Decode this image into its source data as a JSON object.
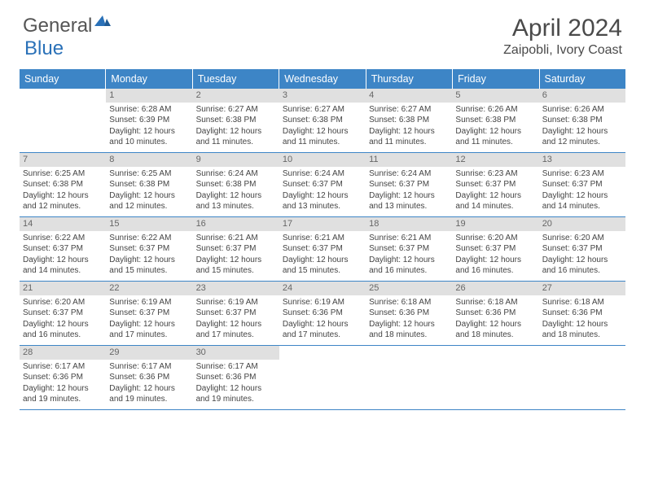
{
  "logo": {
    "general": "General",
    "blue": "Blue"
  },
  "title": "April 2024",
  "location": "Zaipobli, Ivory Coast",
  "colors": {
    "header_bar": "#3d85c6",
    "daynum_bg": "#e0e0e0",
    "text": "#444444",
    "logo_blue": "#2a71b8",
    "logo_gray": "#555555",
    "rule": "#3d85c6"
  },
  "days_of_week": [
    "Sunday",
    "Monday",
    "Tuesday",
    "Wednesday",
    "Thursday",
    "Friday",
    "Saturday"
  ],
  "weeks": [
    [
      {
        "n": "",
        "sr": "",
        "ss": "",
        "dl": ""
      },
      {
        "n": "1",
        "sr": "6:28 AM",
        "ss": "6:39 PM",
        "dl": "12 hours and 10 minutes."
      },
      {
        "n": "2",
        "sr": "6:27 AM",
        "ss": "6:38 PM",
        "dl": "12 hours and 11 minutes."
      },
      {
        "n": "3",
        "sr": "6:27 AM",
        "ss": "6:38 PM",
        "dl": "12 hours and 11 minutes."
      },
      {
        "n": "4",
        "sr": "6:27 AM",
        "ss": "6:38 PM",
        "dl": "12 hours and 11 minutes."
      },
      {
        "n": "5",
        "sr": "6:26 AM",
        "ss": "6:38 PM",
        "dl": "12 hours and 11 minutes."
      },
      {
        "n": "6",
        "sr": "6:26 AM",
        "ss": "6:38 PM",
        "dl": "12 hours and 12 minutes."
      }
    ],
    [
      {
        "n": "7",
        "sr": "6:25 AM",
        "ss": "6:38 PM",
        "dl": "12 hours and 12 minutes."
      },
      {
        "n": "8",
        "sr": "6:25 AM",
        "ss": "6:38 PM",
        "dl": "12 hours and 12 minutes."
      },
      {
        "n": "9",
        "sr": "6:24 AM",
        "ss": "6:38 PM",
        "dl": "12 hours and 13 minutes."
      },
      {
        "n": "10",
        "sr": "6:24 AM",
        "ss": "6:37 PM",
        "dl": "12 hours and 13 minutes."
      },
      {
        "n": "11",
        "sr": "6:24 AM",
        "ss": "6:37 PM",
        "dl": "12 hours and 13 minutes."
      },
      {
        "n": "12",
        "sr": "6:23 AM",
        "ss": "6:37 PM",
        "dl": "12 hours and 14 minutes."
      },
      {
        "n": "13",
        "sr": "6:23 AM",
        "ss": "6:37 PM",
        "dl": "12 hours and 14 minutes."
      }
    ],
    [
      {
        "n": "14",
        "sr": "6:22 AM",
        "ss": "6:37 PM",
        "dl": "12 hours and 14 minutes."
      },
      {
        "n": "15",
        "sr": "6:22 AM",
        "ss": "6:37 PM",
        "dl": "12 hours and 15 minutes."
      },
      {
        "n": "16",
        "sr": "6:21 AM",
        "ss": "6:37 PM",
        "dl": "12 hours and 15 minutes."
      },
      {
        "n": "17",
        "sr": "6:21 AM",
        "ss": "6:37 PM",
        "dl": "12 hours and 15 minutes."
      },
      {
        "n": "18",
        "sr": "6:21 AM",
        "ss": "6:37 PM",
        "dl": "12 hours and 16 minutes."
      },
      {
        "n": "19",
        "sr": "6:20 AM",
        "ss": "6:37 PM",
        "dl": "12 hours and 16 minutes."
      },
      {
        "n": "20",
        "sr": "6:20 AM",
        "ss": "6:37 PM",
        "dl": "12 hours and 16 minutes."
      }
    ],
    [
      {
        "n": "21",
        "sr": "6:20 AM",
        "ss": "6:37 PM",
        "dl": "12 hours and 16 minutes."
      },
      {
        "n": "22",
        "sr": "6:19 AM",
        "ss": "6:37 PM",
        "dl": "12 hours and 17 minutes."
      },
      {
        "n": "23",
        "sr": "6:19 AM",
        "ss": "6:37 PM",
        "dl": "12 hours and 17 minutes."
      },
      {
        "n": "24",
        "sr": "6:19 AM",
        "ss": "6:36 PM",
        "dl": "12 hours and 17 minutes."
      },
      {
        "n": "25",
        "sr": "6:18 AM",
        "ss": "6:36 PM",
        "dl": "12 hours and 18 minutes."
      },
      {
        "n": "26",
        "sr": "6:18 AM",
        "ss": "6:36 PM",
        "dl": "12 hours and 18 minutes."
      },
      {
        "n": "27",
        "sr": "6:18 AM",
        "ss": "6:36 PM",
        "dl": "12 hours and 18 minutes."
      }
    ],
    [
      {
        "n": "28",
        "sr": "6:17 AM",
        "ss": "6:36 PM",
        "dl": "12 hours and 19 minutes."
      },
      {
        "n": "29",
        "sr": "6:17 AM",
        "ss": "6:36 PM",
        "dl": "12 hours and 19 minutes."
      },
      {
        "n": "30",
        "sr": "6:17 AM",
        "ss": "6:36 PM",
        "dl": "12 hours and 19 minutes."
      },
      {
        "n": "",
        "sr": "",
        "ss": "",
        "dl": ""
      },
      {
        "n": "",
        "sr": "",
        "ss": "",
        "dl": ""
      },
      {
        "n": "",
        "sr": "",
        "ss": "",
        "dl": ""
      },
      {
        "n": "",
        "sr": "",
        "ss": "",
        "dl": ""
      }
    ]
  ],
  "labels": {
    "sunrise": "Sunrise:",
    "sunset": "Sunset:",
    "daylight": "Daylight:"
  }
}
